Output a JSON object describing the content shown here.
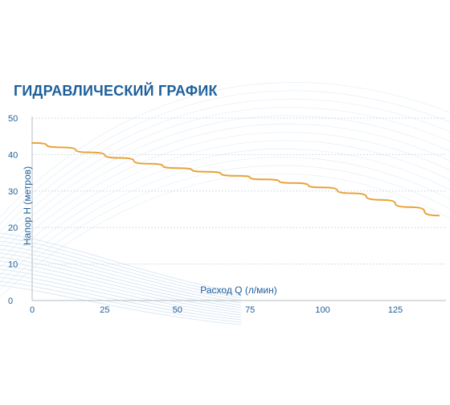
{
  "chart_data": {
    "type": "line",
    "title": "ГИДРАВЛИЧЕСКИЙ ГРАФИК",
    "xlabel": "Расход Q (л/мин)",
    "ylabel": "Напор H (метров)",
    "xlim": [
      0,
      140
    ],
    "ylim": [
      0,
      50
    ],
    "xticks": [
      0,
      25,
      50,
      75,
      100,
      125
    ],
    "yticks": [
      0,
      10,
      20,
      30,
      40,
      50
    ],
    "grid": true,
    "series": [
      {
        "color": "#e8a33a",
        "x": [
          0,
          10,
          20,
          30,
          40,
          50,
          60,
          70,
          80,
          90,
          100,
          110,
          120,
          130,
          140
        ],
        "y": [
          43.2,
          42.0,
          40.6,
          39.1,
          37.5,
          36.3,
          35.3,
          34.2,
          33.2,
          32.2,
          31.0,
          29.4,
          27.6,
          25.6,
          23.3
        ]
      }
    ]
  },
  "colors": {
    "title": "#1d5f9a",
    "axis_text": "#1d5f9a",
    "axis_line": "#b6bdc4",
    "grid": "#d4dde6",
    "decor": "#cfe0ef"
  }
}
